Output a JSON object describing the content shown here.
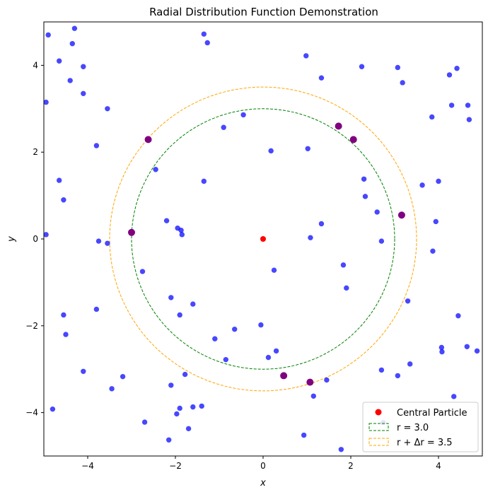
{
  "chart_data": {
    "type": "scatter",
    "title": "Radial Distribution Function Demonstration",
    "xlabel": "x",
    "ylabel": "y",
    "xlim": [
      -5,
      5
    ],
    "ylim": [
      -5,
      5
    ],
    "xticks": [
      -4,
      -2,
      0,
      2,
      4
    ],
    "yticks": [
      -4,
      -2,
      0,
      2,
      4
    ],
    "xtick_labels": [
      "−4",
      "−2",
      "0",
      "2",
      "4"
    ],
    "ytick_labels": [
      "−4",
      "−2",
      "0",
      "2",
      "4"
    ],
    "grid": false,
    "legend_position": "lower-right",
    "central_particle": {
      "name": "Central Particle",
      "x": 0,
      "y": 0,
      "color": "#ff0000"
    },
    "circles": [
      {
        "name": "r = 3.0",
        "legend_label": "r = 3.0",
        "radius": 3.0,
        "color": "#008000",
        "style": "dashed"
      },
      {
        "name": "r + Δr = 3.5",
        "legend_label": "r + Δr = 3.5",
        "radius": 3.5,
        "color": "#ffa500",
        "style": "dashed"
      }
    ],
    "particles": {
      "color": "#0000ff",
      "points": [
        [
          -4.9,
          4.7
        ],
        [
          -4.3,
          4.85
        ],
        [
          -4.35,
          4.5
        ],
        [
          -4.65,
          4.1
        ],
        [
          -4.1,
          3.97
        ],
        [
          -4.4,
          3.65
        ],
        [
          -4.1,
          3.35
        ],
        [
          -4.95,
          3.15
        ],
        [
          -3.55,
          3.0
        ],
        [
          -3.8,
          2.15
        ],
        [
          -4.65,
          1.35
        ],
        [
          -4.55,
          0.9
        ],
        [
          -4.95,
          0.1
        ],
        [
          -3.75,
          -0.05
        ],
        [
          -3.55,
          -0.1
        ],
        [
          -2.75,
          -0.75
        ],
        [
          -3.8,
          -1.62
        ],
        [
          -4.55,
          -1.75
        ],
        [
          -4.5,
          -2.2
        ],
        [
          -4.1,
          -3.05
        ],
        [
          -3.2,
          -3.17
        ],
        [
          -3.45,
          -3.45
        ],
        [
          -4.8,
          -3.92
        ],
        [
          -2.7,
          -4.22
        ],
        [
          -2.1,
          -3.37
        ],
        [
          -1.9,
          -3.9
        ],
        [
          -1.97,
          -4.03
        ],
        [
          -1.78,
          -3.12
        ],
        [
          -1.7,
          -4.37
        ],
        [
          -1.6,
          -3.87
        ],
        [
          -1.4,
          -3.85
        ],
        [
          -2.15,
          -4.63
        ],
        [
          -2.45,
          1.6
        ],
        [
          -2.2,
          0.42
        ],
        [
          -1.95,
          0.25
        ],
        [
          -1.87,
          0.2
        ],
        [
          -1.85,
          0.1
        ],
        [
          -2.1,
          -1.35
        ],
        [
          -1.9,
          -1.75
        ],
        [
          -1.6,
          -1.5
        ],
        [
          -1.1,
          -2.3
        ],
        [
          -0.65,
          -2.08
        ],
        [
          -0.85,
          -2.78
        ],
        [
          -1.35,
          1.33
        ],
        [
          -0.9,
          2.57
        ],
        [
          -0.45,
          2.86
        ],
        [
          -1.35,
          4.72
        ],
        [
          -1.27,
          4.52
        ],
        [
          0.18,
          2.03
        ],
        [
          0.25,
          -0.72
        ],
        [
          -0.05,
          -1.98
        ],
        [
          0.12,
          -2.73
        ],
        [
          0.3,
          -2.58
        ],
        [
          1.02,
          2.08
        ],
        [
          1.08,
          0.03
        ],
        [
          1.33,
          0.35
        ],
        [
          1.83,
          -0.6
        ],
        [
          1.9,
          -1.13
        ],
        [
          1.45,
          -3.25
        ],
        [
          1.15,
          -3.62
        ],
        [
          0.93,
          -4.52
        ],
        [
          1.78,
          -4.85
        ],
        [
          0.98,
          4.22
        ],
        [
          1.33,
          3.71
        ],
        [
          2.25,
          3.97
        ],
        [
          2.3,
          1.38
        ],
        [
          2.33,
          0.98
        ],
        [
          2.6,
          0.62
        ],
        [
          2.7,
          -0.05
        ],
        [
          2.7,
          -3.02
        ],
        [
          2.74,
          -4.23
        ],
        [
          3.07,
          3.95
        ],
        [
          3.18,
          3.6
        ],
        [
          3.3,
          -1.43
        ],
        [
          3.35,
          -2.88
        ],
        [
          3.07,
          -3.15
        ],
        [
          3.63,
          1.24
        ],
        [
          3.85,
          2.81
        ],
        [
          3.87,
          -0.28
        ],
        [
          3.94,
          0.4
        ],
        [
          4.0,
          1.33
        ],
        [
          4.07,
          -2.5
        ],
        [
          4.08,
          -2.6
        ],
        [
          4.25,
          3.78
        ],
        [
          4.3,
          3.08
        ],
        [
          4.42,
          3.93
        ],
        [
          4.45,
          -1.77
        ],
        [
          4.35,
          -3.63
        ],
        [
          4.67,
          3.08
        ],
        [
          4.7,
          2.75
        ],
        [
          4.65,
          -2.48
        ],
        [
          4.88,
          -2.58
        ]
      ]
    },
    "shell_particles": {
      "color": "#800080",
      "points": [
        [
          -2.62,
          2.29
        ],
        [
          -3.0,
          0.15
        ],
        [
          1.72,
          2.6
        ],
        [
          2.06,
          2.29
        ],
        [
          3.16,
          0.55
        ],
        [
          0.47,
          -3.15
        ],
        [
          1.07,
          -3.3
        ]
      ]
    },
    "legend_entries": [
      {
        "label": "Central Particle"
      },
      {
        "label": "r = 3.0"
      },
      {
        "label": "r + Δr = 3.5"
      }
    ]
  }
}
